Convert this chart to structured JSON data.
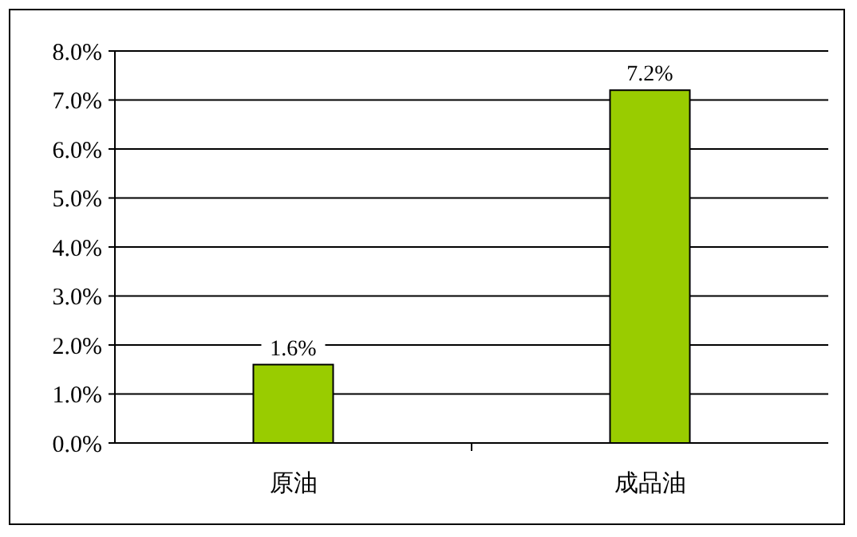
{
  "chart_data": {
    "type": "bar",
    "categories": [
      "原油",
      "成品油"
    ],
    "values": [
      1.6,
      7.2
    ],
    "color": "#99cc00",
    "value_labels": [
      "1.6%",
      "7.2%"
    ],
    "ylim": [
      0,
      8
    ],
    "yticks": [
      {
        "value": 0,
        "label": "0.0%"
      },
      {
        "value": 1,
        "label": "1.0%"
      },
      {
        "value": 2,
        "label": "2.0%"
      },
      {
        "value": 3,
        "label": "3.0%"
      },
      {
        "value": 4,
        "label": "4.0%"
      },
      {
        "value": 5,
        "label": "5.0%"
      },
      {
        "value": 6,
        "label": "6.0%"
      },
      {
        "value": 7,
        "label": "7.0%"
      },
      {
        "value": 8,
        "label": "8.0%"
      }
    ],
    "grid": "y"
  }
}
